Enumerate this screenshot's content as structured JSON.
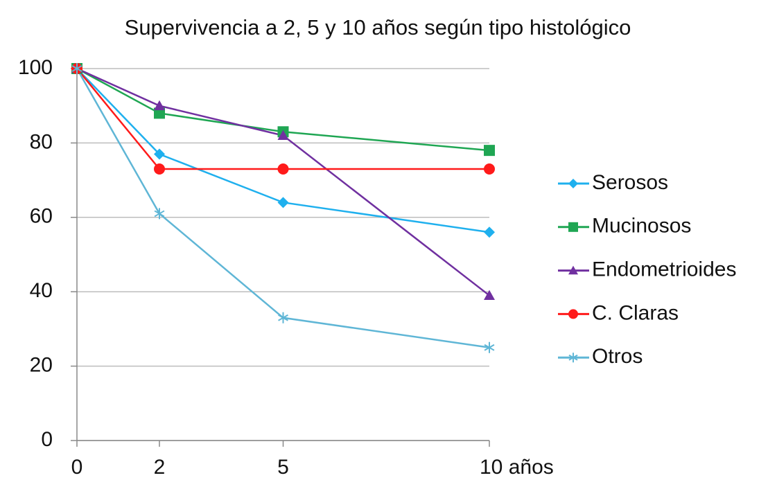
{
  "chart_data": {
    "type": "line",
    "title": "Supervivencia a 2, 5 y 10 años según tipo histológico",
    "x": [
      0,
      2,
      5,
      10
    ],
    "xlim": [
      0,
      10
    ],
    "xticks": [
      0,
      2,
      5,
      {
        "value": 10,
        "label": "10 años"
      }
    ],
    "ylim": [
      0,
      100
    ],
    "yticks": [
      0,
      20,
      40,
      60,
      80,
      100
    ],
    "grid": true,
    "legend": "right",
    "series": [
      {
        "name": "Serosos",
        "color": "#1fb0ee",
        "marker": "diamond",
        "values": [
          100,
          77,
          64,
          56
        ]
      },
      {
        "name": "Mucinosos",
        "color": "#1fa653",
        "marker": "square",
        "values": [
          100,
          88,
          83,
          78
        ]
      },
      {
        "name": "Endometrioides",
        "color": "#7030a0",
        "marker": "triangle",
        "values": [
          100,
          90,
          82,
          39
        ]
      },
      {
        "name": "C. Claras",
        "color": "#ff1a1a",
        "marker": "circle",
        "values": [
          100,
          73,
          73,
          73
        ]
      },
      {
        "name": "Otros",
        "color": "#5fb6d6",
        "marker": "star",
        "values": [
          100,
          61,
          33,
          25
        ]
      }
    ]
  }
}
